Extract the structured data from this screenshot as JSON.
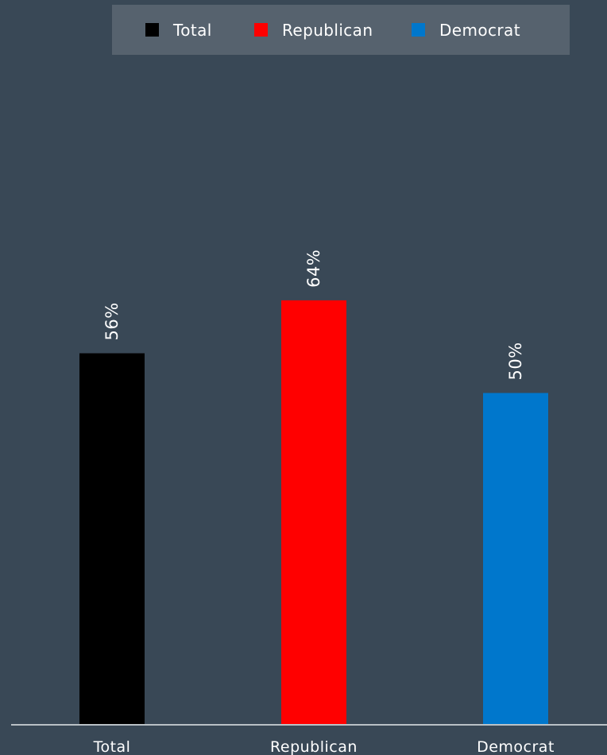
{
  "chart_data": {
    "type": "bar",
    "categories": [
      "Total",
      "Republican",
      "Democrat"
    ],
    "values": [
      56,
      64,
      50
    ],
    "value_labels": [
      "56%",
      "64%",
      "50%"
    ],
    "colors": [
      "#000000",
      "#ff0000",
      "#0077cc"
    ],
    "legend": {
      "position": "top",
      "items": [
        {
          "label": "Total",
          "color": "#000000"
        },
        {
          "label": "Republican",
          "color": "#ff0000"
        },
        {
          "label": "Democrat",
          "color": "#0077cc"
        }
      ]
    },
    "ylim": [
      0,
      100
    ],
    "grid": false
  }
}
